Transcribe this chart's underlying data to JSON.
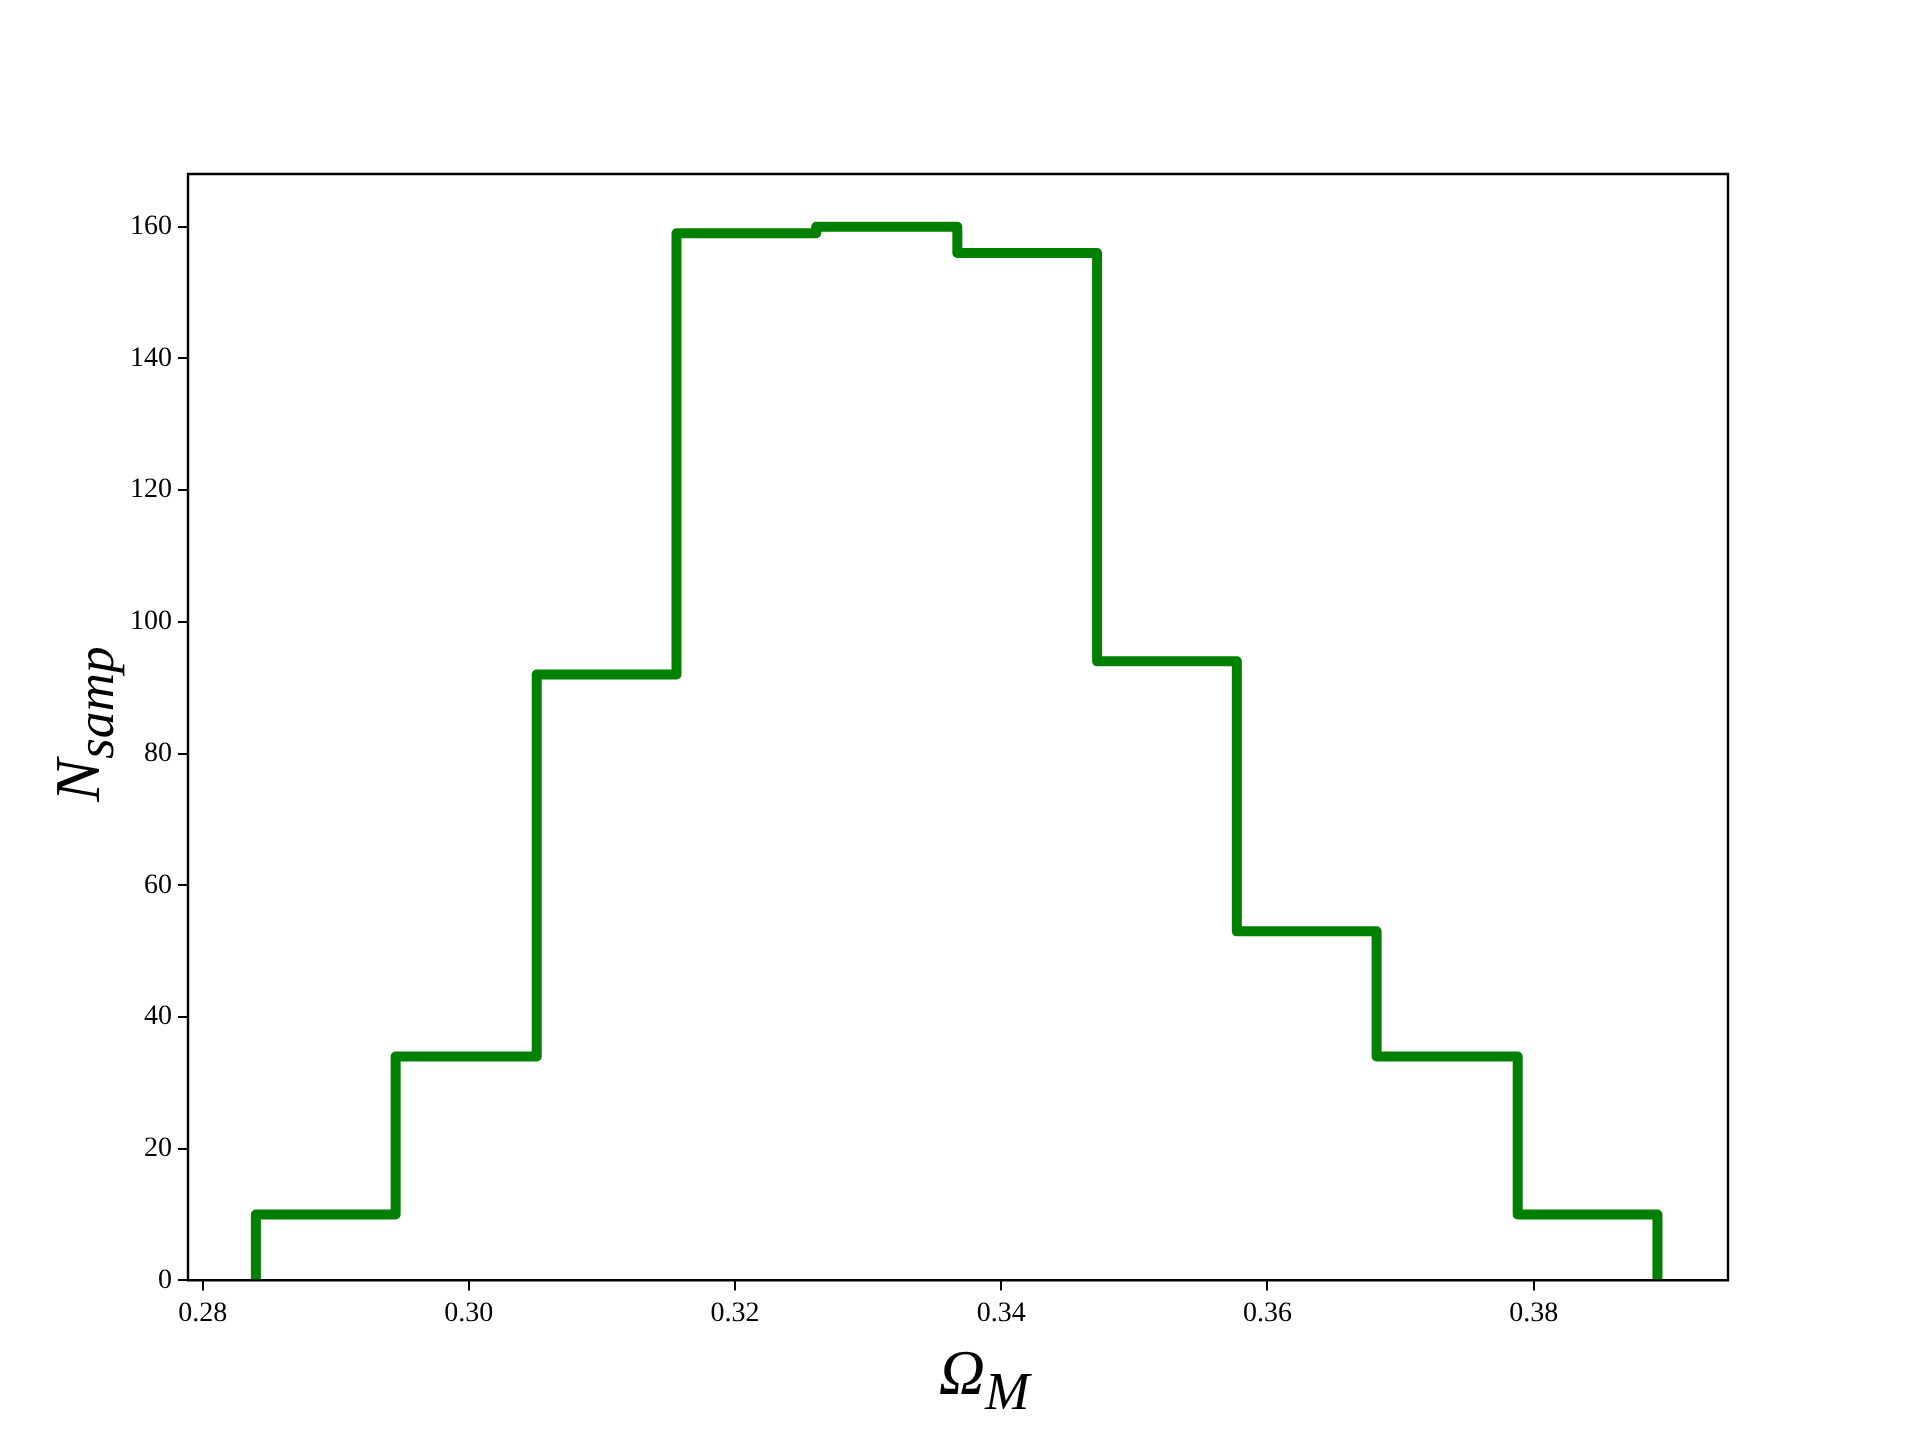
{
  "chart_data": {
    "type": "histogram",
    "xlabel": "Ω$_{M}$",
    "ylabel": "N$_{samp}$",
    "bins": [
      0.284,
      0.2945,
      0.3051,
      0.3156,
      0.3261,
      0.3367,
      0.3472,
      0.3577,
      0.3682,
      0.3788,
      0.3893
    ],
    "values": [
      10,
      34,
      92,
      159,
      160,
      156,
      94,
      53,
      34,
      10
    ],
    "color": "#008000",
    "xlim": [
      0.2789,
      0.3946
    ],
    "xticks": [
      0.28,
      {
        "value": 0.3,
        "label": "0.30"
      },
      0.32,
      0.34,
      0.36,
      0.38
    ],
    "ylim": [
      0,
      168
    ],
    "yticks": [
      0,
      20,
      40,
      60,
      80,
      100,
      120,
      140,
      160
    ],
    "grid": false
  }
}
